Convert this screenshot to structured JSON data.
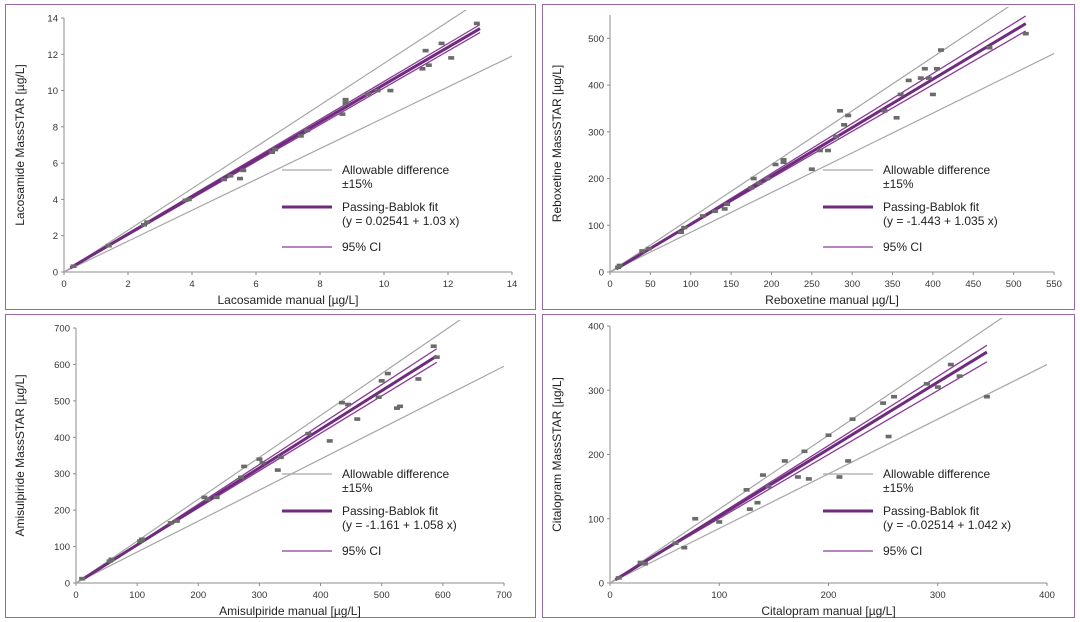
{
  "colors": {
    "allowable": "#a6a6a6",
    "fit": "#6f2b7d",
    "ci": "#8a3a96",
    "points": "#6b6b6b",
    "border": "#9b6aa6",
    "axis": "#8c8c8c"
  },
  "legend": {
    "allowable_label_1": "Allowable difference",
    "allowable_label_2": "±15%",
    "fit_label": "Passing-Bablok fit",
    "ci_label": "95% CI"
  },
  "chart_data": [
    {
      "type": "scatter",
      "xlabel": "Lacosamide manual [µg/L]",
      "ylabel": "Lacosamide MassSTAR [µg/L]",
      "xlim": [
        0,
        14
      ],
      "ylim": [
        0,
        14
      ],
      "xticks": [
        "0",
        "2",
        "4",
        "6",
        "8",
        "10",
        "12",
        "14"
      ],
      "yticks": [
        "0",
        "2",
        "4",
        "6",
        "8",
        "10",
        "12",
        "14"
      ],
      "fit_equation": "(y = 0.02541 + 1.03 x)",
      "intercept": 0.02541,
      "slope": 1.03,
      "ci_lower": {
        "intercept": 0.0,
        "slope": 1.015
      },
      "ci_upper": {
        "intercept": 0.05,
        "slope": 1.045
      },
      "fit_range": [
        0.2,
        13
      ],
      "allowable_range": [
        0,
        14
      ],
      "points": [
        [
          0.3,
          0.32
        ],
        [
          1.4,
          1.45
        ],
        [
          2.5,
          2.6
        ],
        [
          2.6,
          2.75
        ],
        [
          3.8,
          3.95
        ],
        [
          3.9,
          4.0
        ],
        [
          5.0,
          5.1
        ],
        [
          5.2,
          5.3
        ],
        [
          5.5,
          5.15
        ],
        [
          5.6,
          5.6
        ],
        [
          6.5,
          6.6
        ],
        [
          6.6,
          6.75
        ],
        [
          7.4,
          7.5
        ],
        [
          7.6,
          7.8
        ],
        [
          8.7,
          8.7
        ],
        [
          8.8,
          9.3
        ],
        [
          8.8,
          9.5
        ],
        [
          9.5,
          9.8
        ],
        [
          9.8,
          10.0
        ],
        [
          10.2,
          10.0
        ],
        [
          11.2,
          11.2
        ],
        [
          11.4,
          11.4
        ],
        [
          11.3,
          12.2
        ],
        [
          11.8,
          12.6
        ],
        [
          12.1,
          11.8
        ],
        [
          12.9,
          13.7
        ]
      ]
    },
    {
      "type": "scatter",
      "xlabel": "Reboxetine manual µg/L]",
      "ylabel": "Reboxetine  MassSTAR [µg/L]",
      "xlim": [
        0,
        550
      ],
      "ylim": [
        0,
        550
      ],
      "xticks": [
        "0",
        "50",
        "100",
        "150",
        "200",
        "250",
        "300",
        "350",
        "400",
        "450",
        "500",
        "550"
      ],
      "yticks": [
        "0",
        "100",
        "200",
        "300",
        "400",
        "500"
      ],
      "fit_equation": "(y = -1.443 + 1.035 x)",
      "intercept": -1.443,
      "slope": 1.035,
      "ci_lower": {
        "intercept": 1.0,
        "slope": 1.0
      },
      "ci_upper": {
        "intercept": -3.0,
        "slope": 1.07
      },
      "fit_range": [
        8,
        515
      ],
      "allowable_range": [
        0,
        550
      ],
      "points": [
        [
          10,
          10
        ],
        [
          12,
          14
        ],
        [
          40,
          45
        ],
        [
          48,
          50
        ],
        [
          88,
          85
        ],
        [
          92,
          95
        ],
        [
          115,
          120
        ],
        [
          130,
          130
        ],
        [
          142,
          135
        ],
        [
          145,
          145
        ],
        [
          175,
          180
        ],
        [
          178,
          200
        ],
        [
          185,
          190
        ],
        [
          195,
          200
        ],
        [
          205,
          230
        ],
        [
          215,
          235
        ],
        [
          215,
          240
        ],
        [
          250,
          220
        ],
        [
          260,
          260
        ],
        [
          270,
          260
        ],
        [
          280,
          290
        ],
        [
          285,
          345
        ],
        [
          290,
          315
        ],
        [
          295,
          335
        ],
        [
          340,
          345
        ],
        [
          355,
          330
        ],
        [
          360,
          380
        ],
        [
          370,
          410
        ],
        [
          385,
          415
        ],
        [
          390,
          435
        ],
        [
          395,
          415
        ],
        [
          400,
          380
        ],
        [
          405,
          435
        ],
        [
          410,
          475
        ],
        [
          470,
          480
        ],
        [
          515,
          510
        ]
      ]
    },
    {
      "type": "scatter",
      "xlabel": "Amisulpiride manual [µg/L]",
      "ylabel": "Amisulpiride MassSTAR [µg/L]",
      "xlim": [
        0,
        700
      ],
      "ylim": [
        0,
        700
      ],
      "xticks": [
        "0",
        "100",
        "200",
        "300",
        "400",
        "500",
        "600",
        "700"
      ],
      "yticks": [
        "0",
        "100",
        "200",
        "300",
        "400",
        "500",
        "600",
        "700"
      ],
      "fit_equation": "(y = -1.161 + 1.058 x)",
      "intercept": -1.161,
      "slope": 1.058,
      "ci_lower": {
        "intercept": 1.0,
        "slope": 1.025
      },
      "ci_upper": {
        "intercept": -3.0,
        "slope": 1.095
      },
      "fit_range": [
        10,
        590
      ],
      "allowable_range": [
        0,
        700
      ],
      "points": [
        [
          10,
          12
        ],
        [
          55,
          60
        ],
        [
          58,
          65
        ],
        [
          105,
          115
        ],
        [
          108,
          120
        ],
        [
          155,
          165
        ],
        [
          165,
          170
        ],
        [
          210,
          235
        ],
        [
          215,
          230
        ],
        [
          230,
          235
        ],
        [
          270,
          290
        ],
        [
          275,
          320
        ],
        [
          300,
          340
        ],
        [
          305,
          330
        ],
        [
          330,
          310
        ],
        [
          335,
          345
        ],
        [
          380,
          410
        ],
        [
          415,
          390
        ],
        [
          435,
          495
        ],
        [
          445,
          490
        ],
        [
          460,
          450
        ],
        [
          495,
          510
        ],
        [
          500,
          555
        ],
        [
          510,
          575
        ],
        [
          525,
          480
        ],
        [
          530,
          485
        ],
        [
          560,
          560
        ],
        [
          585,
          650
        ],
        [
          590,
          620
        ]
      ]
    },
    {
      "type": "scatter",
      "xlabel": "Citalopram manual [µg/L]",
      "ylabel": "Citalopram MassSTAR [µg/L]",
      "xlim": [
        0,
        400
      ],
      "ylim": [
        0,
        400
      ],
      "xticks": [
        "0",
        "100",
        "200",
        "300",
        "400"
      ],
      "yticks": [
        "0",
        "100",
        "200",
        "300",
        "400"
      ],
      "fit_equation": "(y = -0.02514 + 1.042 x)",
      "intercept": -0.02514,
      "slope": 1.042,
      "ci_lower": {
        "intercept": 1.0,
        "slope": 0.995
      },
      "ci_upper": {
        "intercept": -1.0,
        "slope": 1.075
      },
      "fit_range": [
        5,
        345
      ],
      "allowable_range": [
        0,
        400
      ],
      "points": [
        [
          8,
          8
        ],
        [
          28,
          32
        ],
        [
          32,
          30
        ],
        [
          60,
          62
        ],
        [
          68,
          55
        ],
        [
          78,
          100
        ],
        [
          100,
          95
        ],
        [
          125,
          145
        ],
        [
          128,
          115
        ],
        [
          135,
          125
        ],
        [
          140,
          168
        ],
        [
          145,
          150
        ],
        [
          160,
          190
        ],
        [
          172,
          165
        ],
        [
          178,
          205
        ],
        [
          182,
          162
        ],
        [
          200,
          230
        ],
        [
          210,
          165
        ],
        [
          218,
          190
        ],
        [
          222,
          255
        ],
        [
          250,
          280
        ],
        [
          255,
          228
        ],
        [
          260,
          290
        ],
        [
          290,
          310
        ],
        [
          300,
          305
        ],
        [
          312,
          340
        ],
        [
          320,
          322
        ],
        [
          345,
          290
        ]
      ]
    }
  ]
}
